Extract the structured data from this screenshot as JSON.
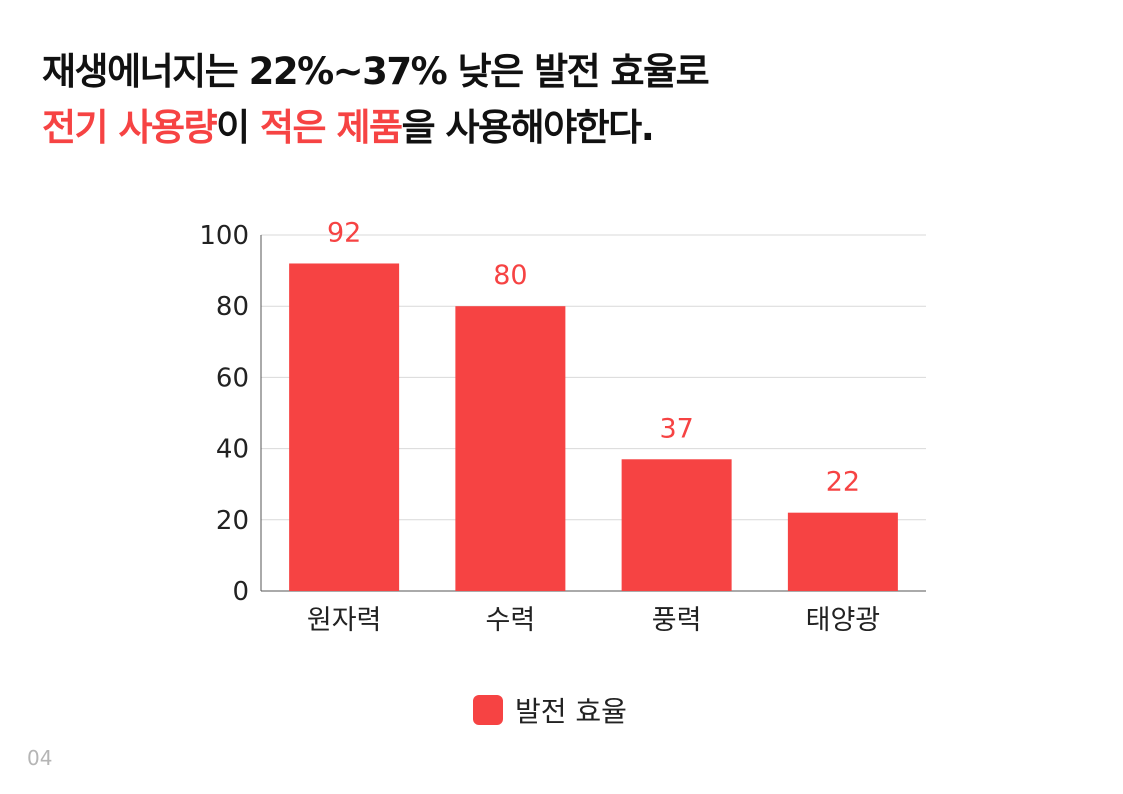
{
  "headline": {
    "line1": "재생에너지는 22%~37% 낮은 발전 효율로",
    "line2_parts": [
      {
        "text": "전기 사용량",
        "highlight": true
      },
      {
        "text": "이 ",
        "highlight": false
      },
      {
        "text": "적은 제품",
        "highlight": true
      },
      {
        "text": "을 사용해야한다.",
        "highlight": false
      }
    ]
  },
  "chart_data": {
    "type": "bar",
    "categories": [
      "원자력",
      "수력",
      "풍력",
      "태양광"
    ],
    "series": [
      {
        "name": "발전 효율",
        "values": [
          92,
          80,
          37,
          22
        ],
        "color": "#f64343"
      }
    ],
    "ylim": [
      0,
      100
    ],
    "yticks": [
      0,
      20,
      40,
      60,
      80,
      100
    ],
    "grid": true,
    "data_labels": true,
    "legend_position": "bottom-center",
    "xlabel": "",
    "ylabel": ""
  },
  "page_number": "04",
  "colors": {
    "accent": "#f64343",
    "grid": "#d9d9d9",
    "axis": "#555555"
  }
}
